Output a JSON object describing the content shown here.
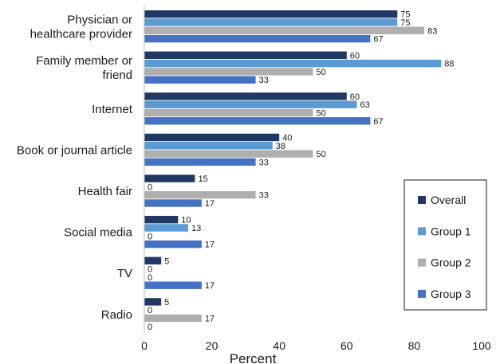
{
  "chart_data": {
    "type": "bar",
    "orientation": "horizontal",
    "categories": [
      "Physician or\nhealthcare provider",
      "Family member or\nfriend",
      "Internet",
      "Book or journal article",
      "Health fair",
      "Social media",
      "TV",
      "Radio"
    ],
    "series": [
      {
        "name": "Overall",
        "color": "#1f3864",
        "values": [
          75,
          60,
          60,
          40,
          15,
          10,
          5,
          5
        ]
      },
      {
        "name": "Group 1",
        "color": "#5b9bd5",
        "values": [
          75,
          88,
          63,
          38,
          0,
          13,
          0,
          0
        ]
      },
      {
        "name": "Group 2",
        "color": "#afafaf",
        "values": [
          83,
          50,
          50,
          50,
          33,
          0,
          0,
          17
        ]
      },
      {
        "name": "Group 3",
        "color": "#4472c4",
        "values": [
          67,
          33,
          67,
          33,
          17,
          17,
          17,
          0
        ]
      }
    ],
    "xlabel": "Percent",
    "ylabel": "",
    "xlim": [
      0,
      100
    ],
    "xticks": [
      0,
      20,
      40,
      60,
      80,
      100
    ],
    "grid": false,
    "legend_position": "bottom-right"
  }
}
